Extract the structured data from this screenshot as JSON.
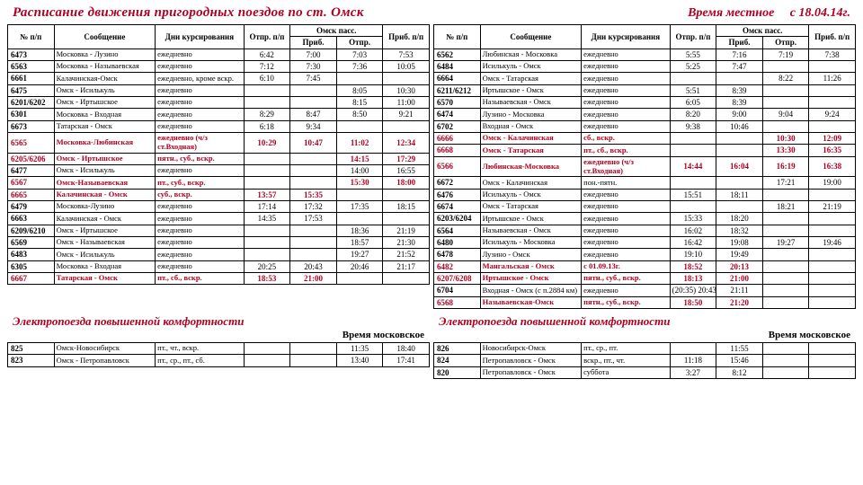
{
  "header": {
    "title": "Расписание движения пригородных поездов по ст. Омск",
    "time_label": "Время местное",
    "date_from": "с 18.04.14г."
  },
  "columns": {
    "num": "№ п/п",
    "route": "Сообщение",
    "days": "Дни курсирования",
    "dep": "Отпр. п/п",
    "stop": "Омск пасс.",
    "arr_in": "Приб.",
    "dep_out": "Отпр.",
    "arr": "Приб. п/п"
  },
  "left_rows": [
    {
      "n": "6473",
      "r": "Московка - Лузино",
      "d": "ежедневно",
      "t1": "6:42",
      "t2": "7:00",
      "t3": "7:03",
      "t4": "7:53",
      "red": false
    },
    {
      "n": "6563",
      "r": "Московка - Называевская",
      "d": "ежедневно",
      "t1": "7:12",
      "t2": "7:30",
      "t3": "7:36",
      "t4": "10:05",
      "red": false
    },
    {
      "n": "6661",
      "r": "Калачинская-Омск",
      "d": "ежедневно, кроме вскр.",
      "t1": "6:10",
      "t2": "7:45",
      "t3": "",
      "t4": "",
      "red": false
    },
    {
      "n": "6475",
      "r": "Омск - Исилькуль",
      "d": "ежедневно",
      "t1": "",
      "t2": "",
      "t3": "8:05",
      "t4": "10:30",
      "red": false
    },
    {
      "n": "6201/6202",
      "r": "Омск - Иртышское",
      "d": "ежедневно",
      "t1": "",
      "t2": "",
      "t3": "8:15",
      "t4": "11:00",
      "red": false
    },
    {
      "n": "6301",
      "r": "Московка - Входная",
      "d": "ежедневно",
      "t1": "8:29",
      "t2": "8:47",
      "t3": "8:50",
      "t4": "9:21",
      "red": false
    },
    {
      "n": "6673",
      "r": "Татарская - Омск",
      "d": "ежедневно",
      "t1": "6:18",
      "t2": "9:34",
      "t3": "",
      "t4": "",
      "red": false
    },
    {
      "n": "6565",
      "r": "Московка-Любинская",
      "d": "ежедневно (ч/з ст.Входная)",
      "t1": "10:29",
      "t2": "10:47",
      "t3": "11:02",
      "t4": "12:34",
      "red": true
    },
    {
      "n": "6205/6206",
      "r": "Омск - Иртышское",
      "d": "пятн., суб., вскр.",
      "t1": "",
      "t2": "",
      "t3": "14:15",
      "t4": "17:29",
      "red": true
    },
    {
      "n": "6477",
      "r": "Омск - Исилькуль",
      "d": "ежедневно",
      "t1": "",
      "t2": "",
      "t3": "14:00",
      "t4": "16:55",
      "red": false
    },
    {
      "n": "6567",
      "r": "Омск-Называевская",
      "d": "пт., суб., вскр.",
      "t1": "",
      "t2": "",
      "t3": "15:30",
      "t4": "18:00",
      "red": true
    },
    {
      "n": "6665",
      "r": "Калачинская - Омск",
      "d": "суб., вскр.",
      "t1": "13:57",
      "t2": "15:35",
      "t3": "",
      "t4": "",
      "red": true
    },
    {
      "n": "6479",
      "r": "Московка-Лузино",
      "d": "ежедневно",
      "t1": "17:14",
      "t2": "17:32",
      "t3": "17:35",
      "t4": "18:15",
      "red": false
    },
    {
      "n": "6663",
      "r": "Калачинская - Омск",
      "d": "ежедневно",
      "t1": "14:35",
      "t2": "17:53",
      "t3": "",
      "t4": "",
      "red": false
    },
    {
      "n": "6209/6210",
      "r": "Омск - Иртышское",
      "d": "ежедневно",
      "t1": "",
      "t2": "",
      "t3": "18:36",
      "t4": "21:19",
      "red": false
    },
    {
      "n": "6569",
      "r": "Омск - Называевская",
      "d": "ежедневно",
      "t1": "",
      "t2": "",
      "t3": "18:57",
      "t4": "21:30",
      "red": false
    },
    {
      "n": "6483",
      "r": "Омск - Исилькуль",
      "d": "ежедневно",
      "t1": "",
      "t2": "",
      "t3": "19:27",
      "t4": "21:52",
      "red": false
    },
    {
      "n": "6305",
      "r": "Московка - Входная",
      "d": "ежедневно",
      "t1": "20:25",
      "t2": "20:43",
      "t3": "20:46",
      "t4": "21:17",
      "red": false
    },
    {
      "n": "6667",
      "r": "Татарская - Омск",
      "d": "пт., сб., вскр.",
      "t1": "18:53",
      "t2": "21:00",
      "t3": "",
      "t4": "",
      "red": true
    }
  ],
  "right_rows": [
    {
      "n": "6562",
      "r": "Любинская - Московка",
      "d": "ежедневно",
      "t1": "5:55",
      "t2": "7:16",
      "t3": "7:19",
      "t4": "7:38",
      "red": false
    },
    {
      "n": "6484",
      "r": "Исилькуль - Омск",
      "d": "ежедневно",
      "t1": "5:25",
      "t2": "7:47",
      "t3": "",
      "t4": "",
      "red": false
    },
    {
      "n": "6664",
      "r": "Омск - Татарская",
      "d": "ежедневно",
      "t1": "",
      "t2": "",
      "t3": "8:22",
      "t4": "11:26",
      "red": false
    },
    {
      "n": "6211/6212",
      "r": "Иртышское - Омск",
      "d": "ежедневно",
      "t1": "5:51",
      "t2": "8:39",
      "t3": "",
      "t4": "",
      "red": false
    },
    {
      "n": "6570",
      "r": "Называевская - Омск",
      "d": "ежедневно",
      "t1": "6:05",
      "t2": "8:39",
      "t3": "",
      "t4": "",
      "red": false
    },
    {
      "n": "6474",
      "r": "Лузино - Московка",
      "d": "ежедневно",
      "t1": "8:20",
      "t2": "9:00",
      "t3": "9:04",
      "t4": "9:24",
      "red": false
    },
    {
      "n": "6702",
      "r": "Входная - Омск",
      "d": "ежедневно",
      "t1": "9:38",
      "t2": "10:46",
      "t3": "",
      "t4": "",
      "red": false
    },
    {
      "n": "6666",
      "r": "Омск - Калачинская",
      "d": "сб., вскр.",
      "t1": "",
      "t2": "",
      "t3": "10:30",
      "t4": "12:09",
      "red": true
    },
    {
      "n": "6668",
      "r": "Омск - Татарская",
      "d": "пт., сб., вскр.",
      "t1": "",
      "t2": "",
      "t3": "13:30",
      "t4": "16:35",
      "red": true
    },
    {
      "n": "6566",
      "r": "Любинская-Московка",
      "d": "ежедневно (ч/з ст.Входная)",
      "t1": "14:44",
      "t2": "16:04",
      "t3": "16:19",
      "t4": "16:38",
      "red": true
    },
    {
      "n": "6672",
      "r": "Омск - Калачинская",
      "d": "пон.-пятн.",
      "t1": "",
      "t2": "",
      "t3": "17:21",
      "t4": "19:00",
      "red": false
    },
    {
      "n": "6476",
      "r": "Исилькуль - Омск",
      "d": "ежедневно",
      "t1": "15:51",
      "t2": "18:11",
      "t3": "",
      "t4": "",
      "red": false
    },
    {
      "n": "6674",
      "r": "Омск - Татарская",
      "d": "ежедневно",
      "t1": "",
      "t2": "",
      "t3": "18:21",
      "t4": "21:19",
      "red": false
    },
    {
      "n": "6203/6204",
      "r": "Иртышское - Омск",
      "d": "ежедневно",
      "t1": "15:33",
      "t2": "18:20",
      "t3": "",
      "t4": "",
      "red": false
    },
    {
      "n": "6564",
      "r": "Называевская - Омск",
      "d": "ежедневно",
      "t1": "16:02",
      "t2": "18:32",
      "t3": "",
      "t4": "",
      "red": false
    },
    {
      "n": "6480",
      "r": "Исилькуль - Московка",
      "d": "ежедневно",
      "t1": "16:42",
      "t2": "19:08",
      "t3": "19:27",
      "t4": "19:46",
      "red": false
    },
    {
      "n": "6478",
      "r": "Лузино - Омск",
      "d": "ежедневно",
      "t1": "19:10",
      "t2": "19:49",
      "t3": "",
      "t4": "",
      "red": false
    },
    {
      "n": "6482",
      "r": "Мангальская - Омск",
      "d": "с 01.09.13г.",
      "t1": "18:52",
      "t2": "20:13",
      "t3": "",
      "t4": "",
      "red": true
    },
    {
      "n": "6207/6208",
      "r": "Иртышское - Омск",
      "d": "пятн., суб., вскр.",
      "t1": "18:13",
      "t2": "21:00",
      "t3": "",
      "t4": "",
      "red": true
    },
    {
      "n": "6704",
      "r": "Входная - Омск (с п.2884 км)",
      "d": "ежедневно",
      "t1": "(20:35) 20:43",
      "t2": "21:11",
      "t3": "",
      "t4": "",
      "red": false
    },
    {
      "n": "6568",
      "r": "Называевская-Омск",
      "d": "пятн., суб., вскр.",
      "t1": "18:50",
      "t2": "21:20",
      "t3": "",
      "t4": "",
      "red": true
    }
  ],
  "comfort": {
    "title": "Электропоезда повышенной комфортности",
    "time_label": "Время московское"
  },
  "comfort_left": [
    {
      "n": "825",
      "r": "Омск-Новосибирск",
      "d": "пт., чт., вскр.",
      "t1": "",
      "t2": "",
      "t3": "11:35",
      "t4": "18:40"
    },
    {
      "n": "823",
      "r": "Омск - Петропавловск",
      "d": "пт., ср., пт., сб.",
      "t1": "",
      "t2": "",
      "t3": "13:40",
      "t4": "17:41"
    }
  ],
  "comfort_right": [
    {
      "n": "826",
      "r": "Новосибирск-Омск",
      "d": "пт., ср., пт.",
      "t1": "",
      "t2": "11:55",
      "t3": "",
      "t4": ""
    },
    {
      "n": "824",
      "r": "Петропавловск - Омск",
      "d": "вскр., пт., чт.",
      "t1": "11:18",
      "t2": "15:46",
      "t3": "",
      "t4": ""
    },
    {
      "n": "820",
      "r": "Петропавловск - Омск",
      "d": "суббота",
      "t1": "3:27",
      "t2": "8:12",
      "t3": "",
      "t4": ""
    }
  ]
}
